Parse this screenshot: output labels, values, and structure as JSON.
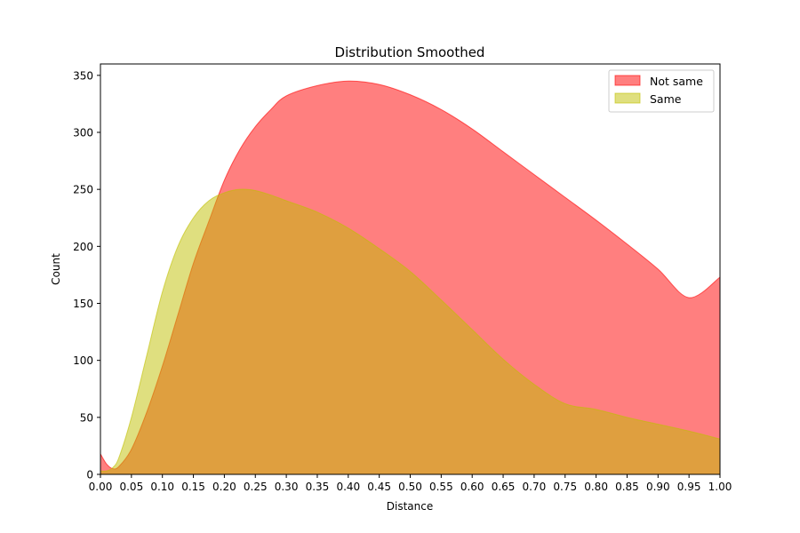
{
  "chart_data": {
    "type": "area",
    "title": "Distribution Smoothed",
    "xlabel": "Distance",
    "ylabel": "Count",
    "xlim": [
      0,
      1
    ],
    "ylim": [
      0,
      360
    ],
    "grid": false,
    "legend_placement": "top-right",
    "x_ticks": [
      "0.00",
      "0.05",
      "0.10",
      "0.15",
      "0.20",
      "0.25",
      "0.30",
      "0.35",
      "0.40",
      "0.45",
      "0.50",
      "0.55",
      "0.60",
      "0.65",
      "0.70",
      "0.75",
      "0.80",
      "0.85",
      "0.90",
      "0.95",
      "1.00"
    ],
    "y_ticks": [
      "0",
      "50",
      "100",
      "150",
      "200",
      "250",
      "300",
      "350"
    ],
    "x": [
      0.0,
      0.01,
      0.02,
      0.03,
      0.05,
      0.075,
      0.1,
      0.125,
      0.15,
      0.175,
      0.2,
      0.225,
      0.25,
      0.275,
      0.3,
      0.35,
      0.4,
      0.45,
      0.5,
      0.55,
      0.6,
      0.65,
      0.7,
      0.75,
      0.8,
      0.85,
      0.9,
      0.95,
      1.0
    ],
    "series": [
      {
        "name": "Not same",
        "color": "#ff0000",
        "opacity": 0.5,
        "values": [
          18,
          9,
          5,
          7,
          22,
          55,
          95,
          140,
          185,
          222,
          258,
          285,
          305,
          320,
          332,
          341,
          345,
          342,
          333,
          320,
          303,
          283,
          263,
          243,
          223,
          202,
          180,
          155,
          173
        ]
      },
      {
        "name": "Same",
        "color": "#bfbf00",
        "opacity": 0.5,
        "values": [
          3,
          3,
          6,
          15,
          50,
          105,
          160,
          200,
          225,
          240,
          247,
          250,
          249,
          245,
          240,
          230,
          216,
          198,
          178,
          153,
          127,
          101,
          79,
          62,
          57,
          50,
          44,
          38,
          31
        ]
      }
    ]
  }
}
